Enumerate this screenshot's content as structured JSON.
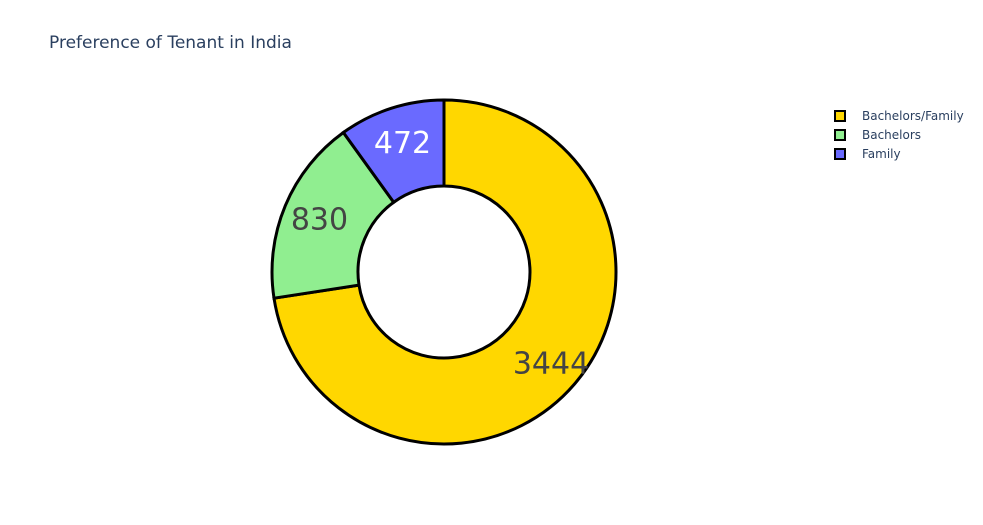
{
  "chart_data": {
    "type": "pie",
    "title": "Preference of Tenant in India",
    "hole": true,
    "legend_position": "top-right",
    "slices": [
      {
        "label": "Bachelors/Family",
        "value": 3444,
        "color": "#FFD700",
        "text_color": "#444444"
      },
      {
        "label": "Bachelors",
        "value": 830,
        "color": "#90EE90",
        "text_color": "#444444"
      },
      {
        "label": "Family",
        "value": 472,
        "color": "#6A6AFF",
        "text_color": "#ffffff"
      }
    ]
  }
}
